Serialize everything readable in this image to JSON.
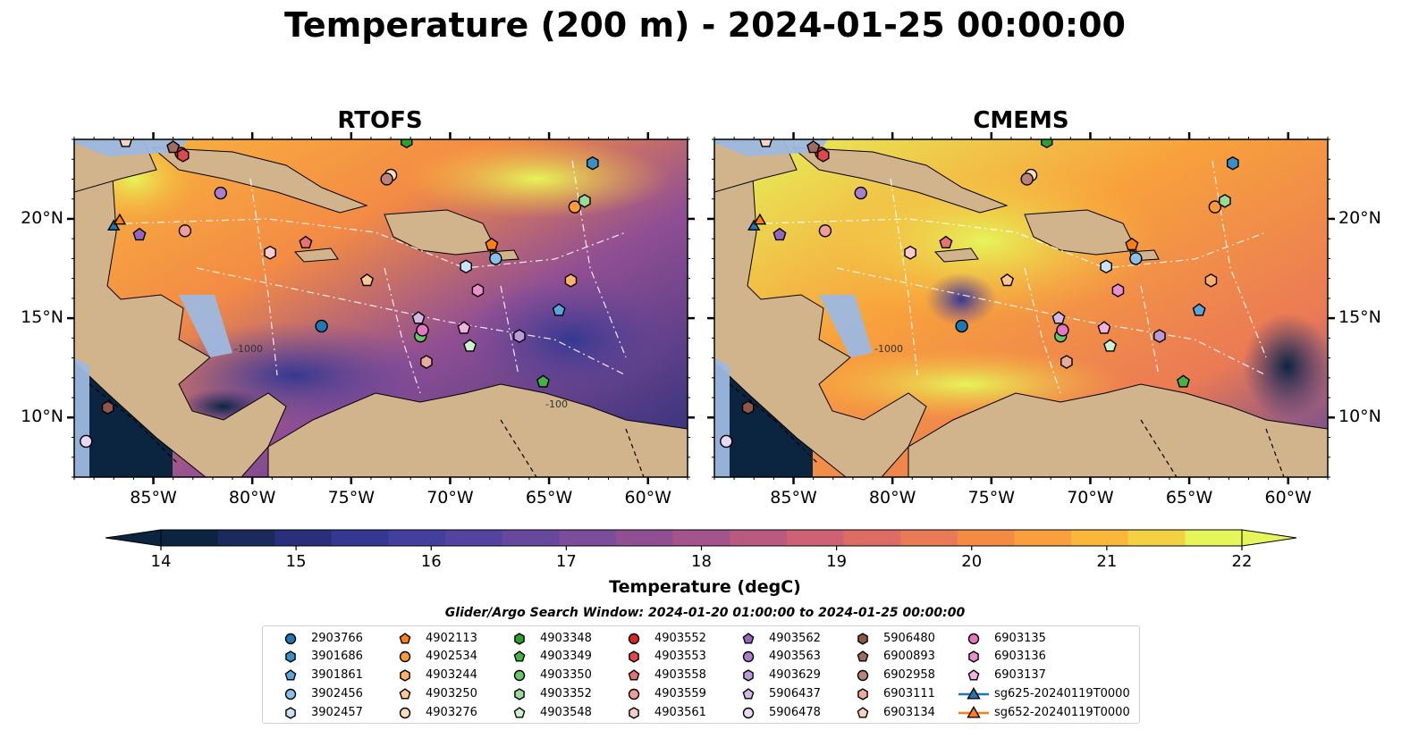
{
  "title": "Temperature (200 m) - 2024-01-25 00:00:00",
  "panels": [
    {
      "title": "RTOFS",
      "left_axis_labels": true
    },
    {
      "title": "CMEMS",
      "left_axis_labels": false
    }
  ],
  "axes": {
    "lon_ticks": [
      "85°W",
      "80°W",
      "75°W",
      "70°W",
      "65°W",
      "60°W"
    ],
    "lat_ticks": [
      "20°N",
      "15°N",
      "10°N"
    ],
    "lon_range": [
      -89,
      -58
    ],
    "lat_range": [
      7,
      24
    ],
    "contour_labels": [
      "-100",
      "-1000"
    ]
  },
  "colorbar": {
    "label": "Temperature (degC)",
    "min": 14,
    "max": 22,
    "ticks": [
      "14",
      "15",
      "16",
      "17",
      "18",
      "19",
      "20",
      "21",
      "22"
    ],
    "colors": [
      "#0b2540",
      "#1a2a5c",
      "#2a2f7c",
      "#353891",
      "#433f9d",
      "#55449f",
      "#67489d",
      "#7c4d9a",
      "#914f93",
      "#a5538b",
      "#b95a80",
      "#cc6274",
      "#dc6c64",
      "#ea7a55",
      "#f38b45",
      "#f8a13c",
      "#f9b83c",
      "#f3d143",
      "#e5f55a"
    ],
    "extend": "both"
  },
  "legend": {
    "title": "Glider/Argo Search Window: 2024-01-20 01:00:00 to 2024-01-25 00:00:00",
    "items": [
      {
        "label": "2903766",
        "marker": "circle",
        "color": "#1f77b4"
      },
      {
        "label": "3901686",
        "marker": "hexagon",
        "color": "#3a8fc8"
      },
      {
        "label": "3901861",
        "marker": "pentagon",
        "color": "#5aa6dc"
      },
      {
        "label": "3902456",
        "marker": "circle",
        "color": "#86c0eb"
      },
      {
        "label": "3902457",
        "marker": "hexagon",
        "color": "#c8e3f7"
      },
      {
        "label": "4902113",
        "marker": "pentagon",
        "color": "#ff7f0e"
      },
      {
        "label": "4902534",
        "marker": "circle",
        "color": "#ff9a3c"
      },
      {
        "label": "4903244",
        "marker": "hexagon",
        "color": "#ffb06a"
      },
      {
        "label": "4903250",
        "marker": "pentagon",
        "color": "#ffc796"
      },
      {
        "label": "4903276",
        "marker": "circle",
        "color": "#ffdcbc"
      },
      {
        "label": "4903348",
        "marker": "hexagon",
        "color": "#2ca02c"
      },
      {
        "label": "4903349",
        "marker": "pentagon",
        "color": "#45b245"
      },
      {
        "label": "4903350",
        "marker": "circle",
        "color": "#69c769"
      },
      {
        "label": "4903352",
        "marker": "hexagon",
        "color": "#98db98"
      },
      {
        "label": "4903548",
        "marker": "pentagon",
        "color": "#cdf0cd"
      },
      {
        "label": "4903552",
        "marker": "circle",
        "color": "#d62728"
      },
      {
        "label": "4903553",
        "marker": "hexagon",
        "color": "#de4a4a"
      },
      {
        "label": "4903558",
        "marker": "pentagon",
        "color": "#e67272"
      },
      {
        "label": "4903559",
        "marker": "circle",
        "color": "#ee9c9c"
      },
      {
        "label": "4903561",
        "marker": "hexagon",
        "color": "#f7cbcb"
      },
      {
        "label": "4903562",
        "marker": "pentagon",
        "color": "#9467bd"
      },
      {
        "label": "4903563",
        "marker": "circle",
        "color": "#a77fcb"
      },
      {
        "label": "4903629",
        "marker": "hexagon",
        "color": "#bb9ad8"
      },
      {
        "label": "5906437",
        "marker": "pentagon",
        "color": "#d2b9e8"
      },
      {
        "label": "5906478",
        "marker": "circle",
        "color": "#e8d8f5"
      },
      {
        "label": "5906480",
        "marker": "hexagon",
        "color": "#8c564b"
      },
      {
        "label": "6900893",
        "marker": "pentagon",
        "color": "#a06b60"
      },
      {
        "label": "6902958",
        "marker": "circle",
        "color": "#b88479"
      },
      {
        "label": "6903111",
        "marker": "hexagon",
        "color": "#e8ab9c"
      },
      {
        "label": "6903134",
        "marker": "pentagon",
        "color": "#f7d3c8"
      },
      {
        "label": "6903135",
        "marker": "circle",
        "color": "#e377c2"
      },
      {
        "label": "6903136",
        "marker": "hexagon",
        "color": "#ea8fd0"
      },
      {
        "label": "6903137",
        "marker": "pentagon",
        "color": "#f2b2e0"
      },
      {
        "label": "sg625-20240119T0000",
        "marker": "triangle-line",
        "color": "#1f77b4"
      },
      {
        "label": "sg652-20240119T0000",
        "marker": "triangle-line",
        "color": "#ff7f0e"
      }
    ]
  },
  "observations": [
    {
      "id": "2903766",
      "lon": -76.5,
      "lat": 14.6
    },
    {
      "id": "3901686",
      "lon": -62.8,
      "lat": 22.8
    },
    {
      "id": "3901861",
      "lon": -64.5,
      "lat": 15.4
    },
    {
      "id": "3902456",
      "lon": -67.7,
      "lat": 18.0
    },
    {
      "id": "3902457",
      "lon": -69.2,
      "lat": 17.6
    },
    {
      "id": "4902113",
      "lon": -67.9,
      "lat": 18.7
    },
    {
      "id": "4902534",
      "lon": -63.7,
      "lat": 20.6
    },
    {
      "id": "4903244",
      "lon": -63.9,
      "lat": 16.9
    },
    {
      "id": "4903250",
      "lon": -74.2,
      "lat": 16.9
    },
    {
      "id": "4903276",
      "lon": -73.0,
      "lat": 22.2
    },
    {
      "id": "4903348",
      "lon": -72.2,
      "lat": 23.9
    },
    {
      "id": "4903349",
      "lon": -65.3,
      "lat": 11.8
    },
    {
      "id": "4903350",
      "lon": -71.5,
      "lat": 14.1
    },
    {
      "id": "4903352",
      "lon": -63.2,
      "lat": 20.9
    },
    {
      "id": "4903548",
      "lon": -69.0,
      "lat": 13.6
    },
    {
      "id": "4903552",
      "lon": -83.6,
      "lat": 23.3
    },
    {
      "id": "4903553",
      "lon": -83.5,
      "lat": 23.2
    },
    {
      "id": "4903558",
      "lon": -77.3,
      "lat": 18.8
    },
    {
      "id": "4903559",
      "lon": -83.4,
      "lat": 19.4
    },
    {
      "id": "4903561",
      "lon": -79.1,
      "lat": 18.3
    },
    {
      "id": "4903562",
      "lon": -85.7,
      "lat": 19.2
    },
    {
      "id": "4903563",
      "lon": -81.6,
      "lat": 21.3
    },
    {
      "id": "4903629",
      "lon": -66.5,
      "lat": 14.1
    },
    {
      "id": "5906437",
      "lon": -71.6,
      "lat": 15.0
    },
    {
      "id": "5906478",
      "lon": -88.4,
      "lat": 8.8
    },
    {
      "id": "5906480",
      "lon": -87.3,
      "lat": 10.5
    },
    {
      "id": "6900893",
      "lon": -84.0,
      "lat": 23.6
    },
    {
      "id": "6902958",
      "lon": -73.2,
      "lat": 22.0
    },
    {
      "id": "6903111",
      "lon": -71.2,
      "lat": 12.8
    },
    {
      "id": "6903134",
      "lon": -86.4,
      "lat": 23.9
    },
    {
      "id": "6903135",
      "lon": -71.4,
      "lat": 14.4
    },
    {
      "id": "6903136",
      "lon": -68.6,
      "lat": 16.4
    },
    {
      "id": "6903137",
      "lon": -69.3,
      "lat": 14.5
    },
    {
      "id": "sg625-20240119T0000",
      "lon": -87.0,
      "lat": 19.6
    },
    {
      "id": "sg652-20240119T0000",
      "lon": -86.7,
      "lat": 19.9
    }
  ]
}
